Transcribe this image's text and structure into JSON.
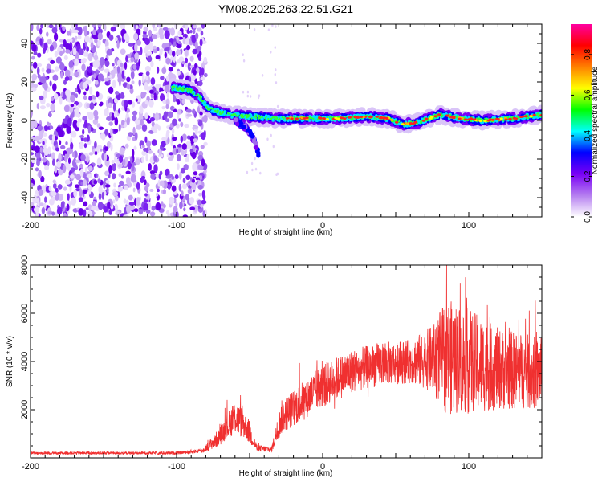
{
  "title": "YM08.2025.263.22.51.G21",
  "chart_data": [
    {
      "type": "heatmap",
      "name": "spectrogram",
      "xlabel": "Height of straight line (km)",
      "ylabel": "Frequency (Hz)",
      "xlim": [
        -200,
        150
      ],
      "ylim": [
        -50,
        50
      ],
      "xticks": [
        -200,
        -100,
        0,
        100
      ],
      "yticks": [
        -40,
        -20,
        0,
        20,
        40
      ],
      "noise_region_xmax": -80,
      "ridge": [
        {
          "x": -103,
          "y": 17
        },
        {
          "x": -92,
          "y": 16
        },
        {
          "x": -85,
          "y": 13
        },
        {
          "x": -78,
          "y": 6
        },
        {
          "x": -65,
          "y": 3
        },
        {
          "x": -50,
          "y": 2
        },
        {
          "x": -30,
          "y": 1
        },
        {
          "x": -10,
          "y": 1
        },
        {
          "x": 10,
          "y": 1
        },
        {
          "x": 30,
          "y": 2
        },
        {
          "x": 45,
          "y": 1
        },
        {
          "x": 55,
          "y": -2
        },
        {
          "x": 65,
          "y": -1
        },
        {
          "x": 80,
          "y": 3
        },
        {
          "x": 95,
          "y": 1
        },
        {
          "x": 110,
          "y": 0
        },
        {
          "x": 130,
          "y": 1
        },
        {
          "x": 150,
          "y": 3
        }
      ],
      "branch": [
        {
          "x": -60,
          "y": 0
        },
        {
          "x": -52,
          "y": -4
        },
        {
          "x": -47,
          "y": -10
        },
        {
          "x": -44,
          "y": -17
        }
      ],
      "colorbar": {
        "label": "Normalized spectral amplitude",
        "range": [
          0,
          0.95
        ],
        "ticks": [
          "0.0",
          "0.2",
          "0.4",
          "0.6",
          "0.8"
        ],
        "tick_values": [
          0,
          0.2,
          0.4,
          0.6,
          0.8
        ],
        "colors": [
          "#ffffff",
          "#b57ef0",
          "#7a00f5",
          "#0000ff",
          "#00ffff",
          "#00ff00",
          "#ffff00",
          "#ff8000",
          "#ff0000",
          "#ff00a0"
        ]
      }
    },
    {
      "type": "line",
      "name": "snr",
      "xlabel": "Height of straight line (km)",
      "ylabel": "SNR (10 * v/v)",
      "xlim": [
        -200,
        150
      ],
      "ylim": [
        0,
        8000
      ],
      "xticks": [
        -200,
        -100,
        0,
        100
      ],
      "yticks": [
        2000,
        4000,
        6000,
        8000
      ],
      "line_color": "#f03030",
      "envelope": [
        {
          "x": -200,
          "mean": 200,
          "amp": 60
        },
        {
          "x": -100,
          "mean": 200,
          "amp": 60
        },
        {
          "x": -82,
          "mean": 300,
          "amp": 100
        },
        {
          "x": -72,
          "mean": 800,
          "amp": 350
        },
        {
          "x": -60,
          "mean": 1700,
          "amp": 700
        },
        {
          "x": -52,
          "mean": 1300,
          "amp": 600
        },
        {
          "x": -45,
          "mean": 400,
          "amp": 150
        },
        {
          "x": -35,
          "mean": 350,
          "amp": 120
        },
        {
          "x": -28,
          "mean": 1700,
          "amp": 700
        },
        {
          "x": -15,
          "mean": 2300,
          "amp": 800
        },
        {
          "x": 0,
          "mean": 3000,
          "amp": 900
        },
        {
          "x": 20,
          "mean": 3600,
          "amp": 900
        },
        {
          "x": 40,
          "mean": 3900,
          "amp": 900
        },
        {
          "x": 60,
          "mean": 4000,
          "amp": 900
        },
        {
          "x": 75,
          "mean": 4100,
          "amp": 1400
        },
        {
          "x": 85,
          "mean": 4200,
          "amp": 2400
        },
        {
          "x": 100,
          "mean": 4000,
          "amp": 2200
        },
        {
          "x": 120,
          "mean": 3700,
          "amp": 1700
        },
        {
          "x": 150,
          "mean": 3500,
          "amp": 1500
        }
      ]
    }
  ]
}
